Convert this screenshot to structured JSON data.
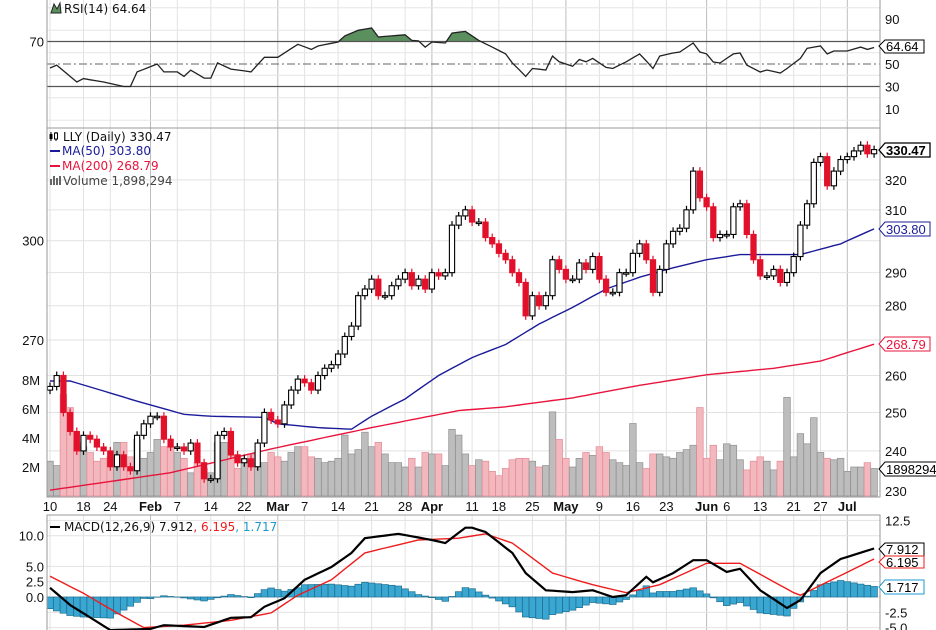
{
  "symbol": "LLY",
  "colors": {
    "up": "#000000",
    "down": "#e3102b",
    "ma50": "#1b1b9a",
    "ma200": "#e8143c",
    "vol_up": "#bdbdbd",
    "vol_down": "#f3b7be",
    "rsi_fill": "#5b8f5d",
    "macd": "#000000",
    "signal": "#ee1c1c",
    "hist": "#3aa7d2"
  },
  "legend": {
    "rsi": "RSI(14) 64.64",
    "price": "LLY (Daily) 330.47",
    "ma50": "MA(50) 303.80",
    "ma200": "MA(200) 268.79",
    "volume": "Volume 1,898,294",
    "macd_prefix": "MACD(12,26,9) 7.912",
    "macd_signal": ", 6.195",
    "macd_hist": ", 1.717"
  },
  "tags": {
    "rsi": "64.64",
    "price": "330.47",
    "ma50": "303.80",
    "ma200": "268.79",
    "volume": "1898294",
    "macd": "7.912",
    "signal": "6.195",
    "hist": "1.717"
  },
  "chart_data": {
    "type": "candlestick",
    "scale": "log",
    "grid": true,
    "dates": [
      "Jan 10",
      "Jan 11",
      "Jan 12",
      "Jan 13",
      "Jan 14",
      "Jan 18",
      "Jan 19",
      "Jan 20",
      "Jan 21",
      "Jan 24",
      "Jan 25",
      "Jan 26",
      "Jan 27",
      "Jan 28",
      "Jan 31",
      "Feb 1",
      "Feb 2",
      "Feb 3",
      "Feb 4",
      "Feb 7",
      "Feb 8",
      "Feb 9",
      "Feb 10",
      "Feb 11",
      "Feb 14",
      "Feb 15",
      "Feb 16",
      "Feb 17",
      "Feb 18",
      "Feb 22",
      "Feb 23",
      "Feb 24",
      "Feb 25",
      "Feb 28",
      "Mar 1",
      "Mar 2",
      "Mar 3",
      "Mar 4",
      "Mar 7",
      "Mar 8",
      "Mar 9",
      "Mar 10",
      "Mar 11",
      "Mar 14",
      "Mar 15",
      "Mar 16",
      "Mar 17",
      "Mar 18",
      "Mar 21",
      "Mar 22",
      "Mar 23",
      "Mar 24",
      "Mar 25",
      "Mar 28",
      "Mar 29",
      "Mar 30",
      "Mar 31",
      "Apr 1",
      "Apr 4",
      "Apr 5",
      "Apr 6",
      "Apr 7",
      "Apr 8",
      "Apr 11",
      "Apr 12",
      "Apr 13",
      "Apr 14",
      "Apr 18",
      "Apr 19",
      "Apr 20",
      "Apr 21",
      "Apr 22",
      "Apr 25",
      "Apr 26",
      "Apr 27",
      "Apr 28",
      "Apr 29",
      "May 2",
      "May 3",
      "May 4",
      "May 5",
      "May 6",
      "May 9",
      "May 10",
      "May 11",
      "May 12",
      "May 13",
      "May 16",
      "May 17",
      "May 18",
      "May 19",
      "May 20",
      "May 23",
      "May 24",
      "May 25",
      "May 26",
      "May 27",
      "May 31",
      "Jun 1",
      "Jun 2",
      "Jun 3",
      "Jun 6",
      "Jun 7",
      "Jun 8",
      "Jun 9",
      "Jun 10",
      "Jun 13",
      "Jun 14",
      "Jun 15",
      "Jun 16",
      "Jun 17",
      "Jun 21",
      "Jun 22",
      "Jun 23",
      "Jun 24",
      "Jun 27",
      "Jun 28",
      "Jun 29",
      "Jun 30",
      "Jul 1",
      "Jul 5",
      "Jul 6",
      "Jul 7",
      "Jul 8"
    ],
    "close": [
      257,
      260,
      250,
      245,
      240,
      244,
      243,
      241,
      240,
      236,
      239,
      236,
      235,
      244,
      247,
      249,
      249,
      243,
      241,
      241,
      240,
      242,
      237,
      233,
      233,
      244,
      245,
      239,
      237,
      238,
      236,
      242,
      250,
      248,
      247,
      252,
      256,
      259,
      258,
      256,
      260,
      262,
      263,
      266,
      271,
      274,
      283,
      285,
      288,
      283,
      283,
      286,
      288,
      290,
      286,
      288,
      285,
      290,
      289,
      290,
      305,
      308,
      310,
      306,
      306,
      301,
      299,
      296,
      294,
      290,
      287,
      277,
      283,
      280,
      283,
      294,
      291,
      288,
      288,
      293,
      291,
      295,
      288,
      284,
      284,
      290,
      290,
      296,
      299,
      294,
      284,
      291,
      299,
      303,
      304,
      310,
      323,
      314,
      311,
      301,
      302,
      302,
      311,
      312,
      302,
      294,
      289,
      289,
      291,
      287,
      290,
      295,
      305,
      312,
      326,
      328,
      318,
      323,
      327,
      328,
      330,
      332,
      329,
      330.47
    ],
    "volume_millions": [
      2.4,
      2.1,
      7.0,
      6.1,
      3.7,
      3.4,
      3.0,
      2.4,
      2.6,
      2.7,
      3.7,
      3.7,
      2.7,
      3.9,
      2.6,
      3.0,
      3.9,
      3.4,
      3.4,
      3.0,
      2.6,
      1.6,
      2.3,
      1.9,
      1.6,
      3.7,
      3.7,
      2.8,
      1.9,
      2.6,
      2.9,
      2.3,
      2.3,
      3.0,
      2.7,
      2.4,
      3.0,
      3.4,
      3.4,
      2.7,
      2.6,
      2.3,
      2.4,
      2.6,
      4.2,
      2.9,
      3.2,
      4.4,
      3.4,
      3.7,
      2.9,
      2.3,
      2.3,
      2.0,
      2.6,
      2.0,
      3.0,
      2.9,
      2.9,
      2.1,
      4.6,
      4.2,
      2.9,
      2.1,
      2.5,
      2.4,
      1.7,
      1.4,
      1.9,
      2.5,
      2.6,
      2.6,
      2.4,
      2.0,
      2.1,
      5.8,
      3.9,
      2.6,
      2.0,
      2.6,
      3.0,
      2.8,
      3.4,
      3.0,
      2.5,
      2.3,
      2.1,
      5.0,
      2.3,
      1.9,
      2.9,
      2.9,
      2.7,
      2.6,
      3.0,
      3.2,
      3.5,
      6.1,
      2.6,
      3.5,
      2.5,
      3.6,
      3.5,
      2.5,
      1.8,
      2.4,
      2.7,
      2.4,
      1.8,
      2.4,
      6.8,
      2.7,
      4.3,
      3.6,
      5.4,
      3.0,
      2.6,
      2.5,
      2.6,
      1.7,
      2.0,
      2.0,
      2.3,
      1.898294
    ],
    "ma50": [
      [
        "Jan 10",
        258.5
      ],
      [
        "Jan 13",
        258.5
      ],
      [
        "Jan 28",
        253
      ],
      [
        "Feb 8",
        249.5
      ],
      [
        "Feb 14",
        249
      ],
      [
        "Feb 25",
        248.7
      ],
      [
        "Mar 1",
        247
      ],
      [
        "Mar 9",
        246
      ],
      [
        "Mar 16",
        245.6
      ],
      [
        "Mar 21",
        249
      ],
      [
        "Mar 28",
        253.6
      ],
      [
        "Apr 4",
        260
      ],
      [
        "Apr 11",
        265
      ],
      [
        "Apr 19",
        268.7
      ],
      [
        "Apr 26",
        274.6
      ],
      [
        "May 3",
        279.5
      ],
      [
        "May 10",
        285
      ],
      [
        "May 17",
        288.6
      ],
      [
        "May 24",
        291.5
      ],
      [
        "Jun 1",
        294
      ],
      [
        "Jun 8",
        295.6
      ],
      [
        "Jun 22",
        295.6
      ],
      [
        "Jun 30",
        299
      ],
      [
        "Jul 8",
        303.8
      ]
    ],
    "ma200": [
      [
        "Jan 10",
        230.2
      ],
      [
        "Feb 4",
        234.5
      ],
      [
        "Feb 28",
        240.5
      ],
      [
        "Mar 21",
        246
      ],
      [
        "Apr 7",
        250.5
      ],
      [
        "Apr 19",
        251.5
      ],
      [
        "May 3",
        253.9
      ],
      [
        "May 17",
        257.3
      ],
      [
        "Jun 1",
        260.2
      ],
      [
        "Jun 15",
        262
      ],
      [
        "Jun 27",
        264
      ],
      [
        "Jul 8",
        268.79
      ]
    ],
    "rsi": [
      [
        "Jan 10",
        46.4
      ],
      [
        "Jan 11",
        49
      ],
      [
        "Jan 14",
        34
      ],
      [
        "Jan 18",
        37
      ],
      [
        "Jan 21",
        34
      ],
      [
        "Jan 26",
        30
      ],
      [
        "Jan 27",
        30
      ],
      [
        "Jan 28",
        43
      ],
      [
        "Feb 2",
        50
      ],
      [
        "Feb 3",
        43
      ],
      [
        "Feb 7",
        43
      ],
      [
        "Feb 8",
        39
      ],
      [
        "Feb 9",
        44.5
      ],
      [
        "Feb 11",
        37.5
      ],
      [
        "Feb 14",
        37.5
      ],
      [
        "Feb 15",
        51
      ],
      [
        "Feb 17",
        45.5
      ],
      [
        "Feb 23",
        43
      ],
      [
        "Feb 25",
        56
      ],
      [
        "Mar 1",
        56
      ],
      [
        "Mar 4",
        67.5
      ],
      [
        "Mar 8",
        63
      ],
      [
        "Mar 9",
        66
      ],
      [
        "Mar 14",
        69.6
      ],
      [
        "Mar 15",
        75
      ],
      [
        "Mar 17",
        80
      ],
      [
        "Mar 21",
        82
      ],
      [
        "Mar 22",
        74
      ],
      [
        "Mar 24",
        75
      ],
      [
        "Mar 28",
        76
      ],
      [
        "Mar 29",
        71
      ],
      [
        "Mar 30",
        70.5
      ],
      [
        "Mar 31",
        65
      ],
      [
        "Apr 1",
        69.6
      ],
      [
        "Apr 5",
        68.7
      ],
      [
        "Apr 6",
        77.5
      ],
      [
        "Apr 8",
        79
      ],
      [
        "Apr 11",
        75
      ],
      [
        "Apr 12",
        71
      ],
      [
        "Apr 14",
        65
      ],
      [
        "Apr 19",
        59
      ],
      [
        "Apr 20",
        51
      ],
      [
        "Apr 22",
        39
      ],
      [
        "Apr 25",
        46
      ],
      [
        "Apr 27",
        44.7
      ],
      [
        "Apr 28",
        57
      ],
      [
        "Apr 29",
        52
      ],
      [
        "May 3",
        48
      ],
      [
        "May 4",
        54
      ],
      [
        "May 5",
        52
      ],
      [
        "May 6",
        55
      ],
      [
        "May 10",
        47
      ],
      [
        "May 11",
        46
      ],
      [
        "May 13",
        52
      ],
      [
        "May 17",
        59
      ],
      [
        "May 18",
        52.7
      ],
      [
        "May 19",
        46
      ],
      [
        "May 20",
        57
      ],
      [
        "May 24",
        59.8
      ],
      [
        "May 25",
        60.7
      ],
      [
        "May 27",
        68.7
      ],
      [
        "May 31",
        60.7
      ],
      [
        "Jun 1",
        59
      ],
      [
        "Jun 2",
        51.8
      ],
      [
        "Jun 3",
        50.9
      ],
      [
        "Jun 7",
        59
      ],
      [
        "Jun 8",
        59.8
      ],
      [
        "Jun 9",
        49
      ],
      [
        "Jun 13",
        42.9
      ],
      [
        "Jun 14",
        44.7
      ],
      [
        "Jun 16",
        42
      ],
      [
        "Jun 17",
        46
      ],
      [
        "Jun 22",
        55
      ],
      [
        "Jun 23",
        64
      ],
      [
        "Jun 27",
        66
      ],
      [
        "Jun 28",
        59
      ],
      [
        "Jun 29",
        61.6
      ],
      [
        "Jul 1",
        61.6
      ],
      [
        "Jul 6",
        65
      ],
      [
        "Jul 7",
        63
      ],
      [
        "Jul 8",
        64.64
      ]
    ],
    "macd": [
      [
        "Jan 10",
        1.5
      ],
      [
        "Jan 13",
        -1.3
      ],
      [
        "Jan 24",
        -5.4
      ],
      [
        "Feb 1",
        -5.2
      ],
      [
        "Feb 3",
        -4.6
      ],
      [
        "Feb 11",
        -4.9
      ],
      [
        "Feb 17",
        -3.4
      ],
      [
        "Feb 23",
        -3.3
      ],
      [
        "Feb 25",
        -1.6
      ],
      [
        "Mar 2",
        -0.2
      ],
      [
        "Mar 7",
        2.8
      ],
      [
        "Mar 11",
        4.9
      ],
      [
        "Mar 16",
        7.2
      ],
      [
        "Mar 18",
        9.6
      ],
      [
        "Mar 25",
        10.3
      ],
      [
        "Apr 1",
        9.3
      ],
      [
        "Apr 5",
        8.8
      ],
      [
        "Apr 8",
        11.3
      ],
      [
        "Apr 11",
        11.3
      ],
      [
        "Apr 13",
        10.6
      ],
      [
        "Apr 20",
        7.2
      ],
      [
        "Apr 22",
        3.9
      ],
      [
        "Apr 27",
        1.1
      ],
      [
        "May 3",
        0.8
      ],
      [
        "May 6",
        1.1
      ],
      [
        "May 11",
        0
      ],
      [
        "May 13",
        0.3
      ],
      [
        "May 18",
        3.3
      ],
      [
        "May 19",
        2.4
      ],
      [
        "May 24",
        3.9
      ],
      [
        "May 27",
        6.0
      ],
      [
        "Jun 1",
        6.0
      ],
      [
        "Jun 6",
        4.1
      ],
      [
        "Jun 8",
        4.6
      ],
      [
        "Jun 13",
        1.1
      ],
      [
        "Jun 17",
        -1.8
      ],
      [
        "Jun 22",
        -0.5
      ],
      [
        "Jun 27",
        3.9
      ],
      [
        "Jun 30",
        6.2
      ],
      [
        "Jul 8",
        7.912
      ]
    ],
    "signal": [
      [
        "Jan 10",
        3.4
      ],
      [
        "Jan 18",
        0.6
      ],
      [
        "Jan 25",
        -2.6
      ],
      [
        "Jan 31",
        -5
      ],
      [
        "Feb 8",
        -4.6
      ],
      [
        "Feb 17",
        -3.8
      ],
      [
        "Feb 28",
        -2.6
      ],
      [
        "Mar 4",
        0.3
      ],
      [
        "Mar 11",
        2.8
      ],
      [
        "Mar 18",
        7.2
      ],
      [
        "Mar 30",
        9.3
      ],
      [
        "Apr 7",
        9.6
      ],
      [
        "Apr 13",
        10.3
      ],
      [
        "Apr 20",
        8.8
      ],
      [
        "Apr 28",
        3.9
      ],
      [
        "May 6",
        2.0
      ],
      [
        "May 13",
        0.7
      ],
      [
        "May 20",
        2.0
      ],
      [
        "Jun 1",
        5.5
      ],
      [
        "Jun 8",
        5.5
      ],
      [
        "Jun 21",
        0.7
      ],
      [
        "Jun 22",
        0.3
      ],
      [
        "Jul 8",
        6.195
      ]
    ],
    "price_ticks": [
      230,
      240,
      250,
      260,
      270,
      280,
      290,
      300,
      310,
      320
    ],
    "rsi_ticks": [
      "90",
      "70",
      "50",
      "30",
      "10"
    ],
    "rsi_levels": [
      90,
      70,
      50,
      30,
      10
    ],
    "volume_ticks": [
      {
        "v": 8,
        "label": "8M"
      },
      {
        "v": 6,
        "label": "6M"
      },
      {
        "v": 4,
        "label": "4M"
      },
      {
        "v": 2,
        "label": "2M"
      }
    ],
    "macd_ticks": [
      {
        "v": 12.5,
        "label": "12.5"
      },
      {
        "v": 10,
        "label": "10.0"
      },
      {
        "v": 5,
        "label": "5.0"
      },
      {
        "v": 2.5,
        "label": "2.5"
      },
      {
        "v": 0,
        "label": "0.0"
      },
      {
        "v": -2.5,
        "label": "-2.5"
      },
      {
        "v": -5,
        "label": "-5.0"
      }
    ],
    "date_ticks": [
      {
        "d": "Jan 10",
        "label": "10"
      },
      {
        "d": "Jan 18",
        "label": "18"
      },
      {
        "d": "Jan 24",
        "label": "24"
      },
      {
        "d": "Feb 1",
        "label": "Feb",
        "month": true
      },
      {
        "d": "Feb 7",
        "label": "7"
      },
      {
        "d": "Feb 14",
        "label": "14"
      },
      {
        "d": "Feb 22",
        "label": "22"
      },
      {
        "d": "Mar 1",
        "label": "Mar",
        "month": true
      },
      {
        "d": "Mar 7",
        "label": "7"
      },
      {
        "d": "Mar 14",
        "label": "14"
      },
      {
        "d": "Mar 21",
        "label": "21"
      },
      {
        "d": "Mar 28",
        "label": "28"
      },
      {
        "d": "Apr 1",
        "label": "Apr",
        "month": true
      },
      {
        "d": "Apr 11",
        "label": "11"
      },
      {
        "d": "Apr 18",
        "label": "18"
      },
      {
        "d": "Apr 25",
        "label": "25"
      },
      {
        "d": "May 2",
        "label": "May",
        "month": true
      },
      {
        "d": "May 9",
        "label": "9"
      },
      {
        "d": "May 16",
        "label": "16"
      },
      {
        "d": "May 23",
        "label": "23"
      },
      {
        "d": "Jun 1",
        "label": "Jun",
        "month": true
      },
      {
        "d": "Jun 6",
        "label": "6"
      },
      {
        "d": "Jun 13",
        "label": "13"
      },
      {
        "d": "Jun 21",
        "label": "21"
      },
      {
        "d": "Jun 27",
        "label": "27"
      },
      {
        "d": "Jul 1",
        "label": "Jul",
        "month": true
      }
    ]
  }
}
